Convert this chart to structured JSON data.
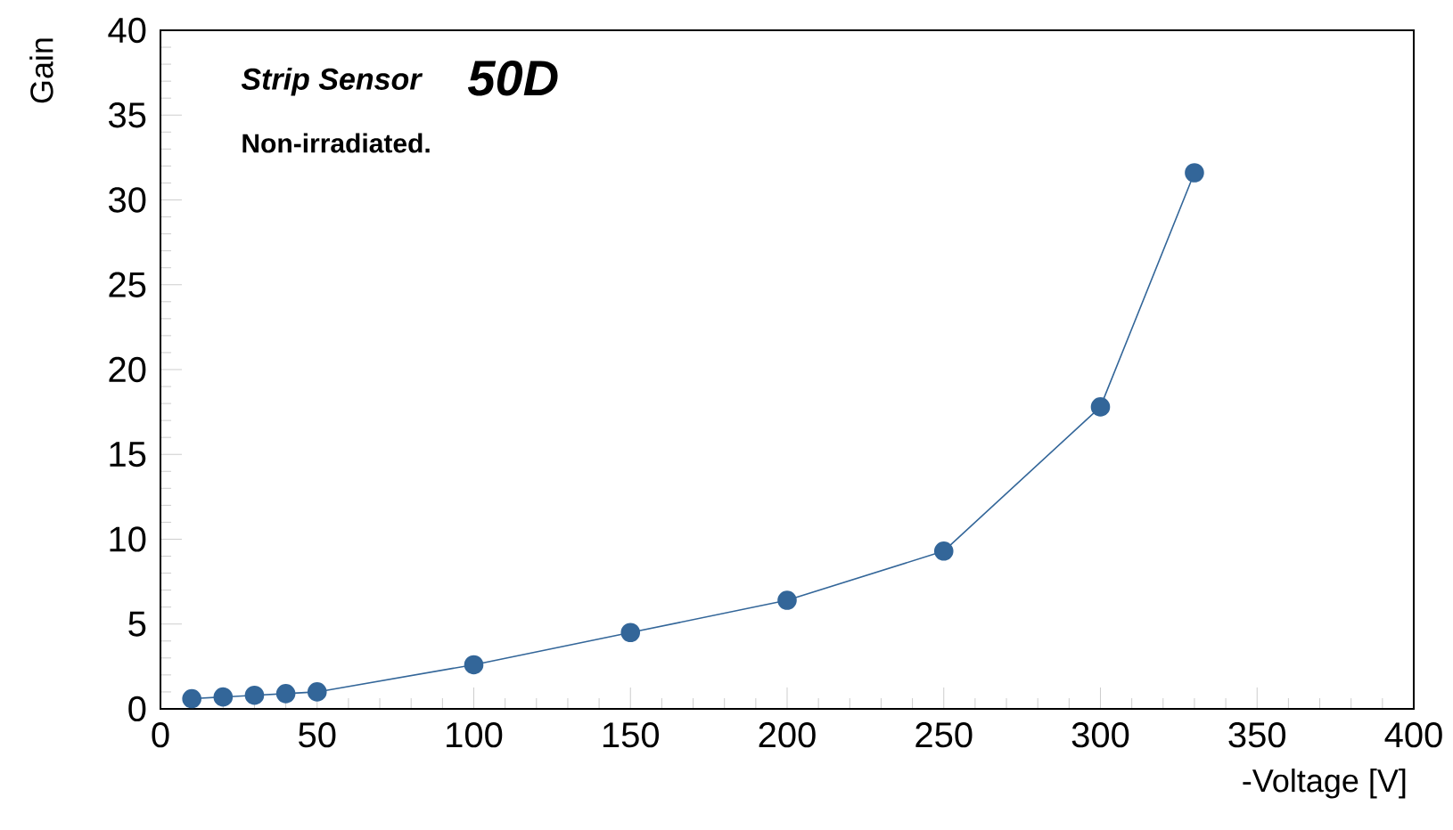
{
  "chart_data": {
    "type": "line",
    "xlabel": "-Voltage [V]",
    "ylabel": "Gain",
    "x": [
      10,
      20,
      30,
      40,
      50,
      100,
      150,
      200,
      250,
      300,
      330
    ],
    "series": [
      {
        "color": "#336699",
        "values": [
          0.6,
          0.7,
          0.8,
          0.9,
          1.0,
          2.6,
          4.5,
          6.4,
          9.3,
          17.8,
          31.6
        ]
      }
    ],
    "xlim": [
      0,
      400
    ],
    "ylim": [
      0,
      40
    ],
    "xticks": [
      0,
      50,
      100,
      150,
      200,
      250,
      300,
      350,
      400
    ],
    "yticks": [
      0,
      5,
      10,
      15,
      20,
      25,
      30,
      35,
      40
    ],
    "annotations": [
      "Strip Sensor",
      "50D",
      "Non-irradiated."
    ],
    "marker": "circle",
    "line_style": "solid"
  }
}
